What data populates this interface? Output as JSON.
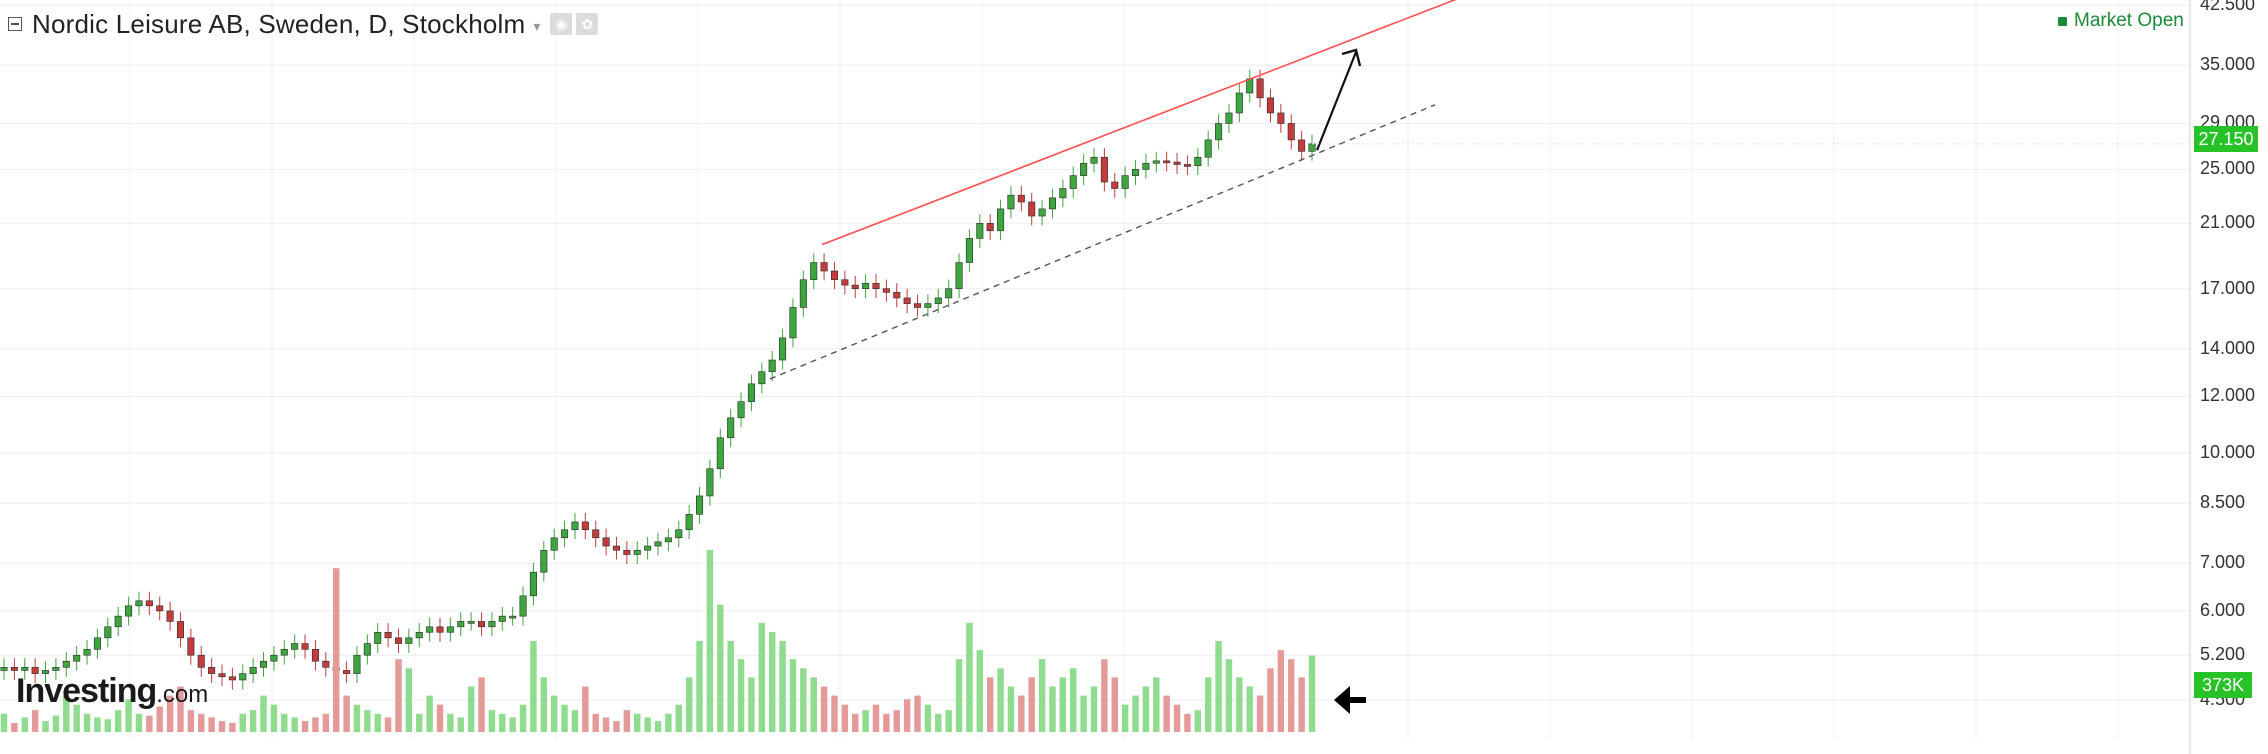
{
  "header": {
    "title": "Nordic Leisure AB, Sweden, D, Stockholm",
    "caret": "▾",
    "icons": [
      "camera-icon",
      "settings-icon"
    ]
  },
  "market_status": "Market Open",
  "logo": {
    "brand": "Investing",
    "suffix": ".com"
  },
  "price_label": "27.150",
  "volume_label": "373K",
  "y_ticks": [
    "42.500",
    "35.000",
    "29.000",
    "25.000",
    "21.000",
    "17.000",
    "14.000",
    "12.000",
    "10.000",
    "8.500",
    "7.000",
    "6.000",
    "5.200",
    "4.500"
  ],
  "colors": {
    "up": "#3ea63e",
    "down": "#c23c3c",
    "up_volume": "#8fdc8f",
    "down_volume": "#e59a9a",
    "resistance_line": "#ff4d4d",
    "support_line": "#555555",
    "price_tag": "#27c227",
    "market_open": "#1a8a3a"
  },
  "chart_data": {
    "type": "candlestick",
    "scale": "log",
    "ylim": [
      4.3,
      43.5
    ],
    "y_ticks": [
      42.5,
      35,
      29,
      25,
      21,
      17,
      14,
      12,
      10,
      8.5,
      7,
      6,
      5.2,
      4.5
    ],
    "last_price": 27.15,
    "last_volume": "373K",
    "close_path": [
      5.0,
      4.95,
      5.0,
      4.9,
      4.95,
      5.0,
      5.1,
      5.2,
      5.3,
      5.5,
      5.7,
      5.9,
      6.1,
      6.2,
      6.1,
      6.0,
      5.8,
      5.5,
      5.2,
      5.0,
      4.9,
      4.85,
      4.8,
      4.9,
      5.0,
      5.1,
      5.2,
      5.3,
      5.4,
      5.3,
      5.1,
      5.0,
      4.95,
      4.9,
      5.2,
      5.4,
      5.6,
      5.5,
      5.4,
      5.5,
      5.6,
      5.7,
      5.6,
      5.7,
      5.8,
      5.8,
      5.7,
      5.8,
      5.9,
      5.9,
      6.3,
      6.8,
      7.3,
      7.6,
      7.8,
      8.0,
      7.8,
      7.6,
      7.4,
      7.3,
      7.2,
      7.3,
      7.4,
      7.5,
      7.6,
      7.8,
      8.2,
      8.7,
      9.5,
      10.5,
      11.2,
      11.8,
      12.5,
      13.0,
      13.5,
      14.5,
      16.0,
      17.5,
      18.5,
      18.0,
      17.5,
      17.2,
      17.0,
      17.3,
      17.0,
      16.8,
      16.5,
      16.2,
      16.0,
      16.2,
      16.5,
      17.0,
      18.5,
      20.0,
      21.0,
      20.5,
      22.0,
      23.0,
      22.5,
      21.5,
      22.0,
      22.8,
      23.5,
      24.5,
      25.5,
      26.0,
      24.0,
      23.5,
      24.5,
      25.0,
      25.5,
      25.7,
      25.6,
      25.4,
      25.3,
      26.0,
      27.5,
      29.0,
      30.0,
      32.0,
      33.5,
      31.5,
      30.0,
      29.0,
      27.5,
      26.5,
      27.15
    ],
    "volume_rel": [
      0.1,
      0.05,
      0.08,
      0.12,
      0.06,
      0.09,
      0.2,
      0.15,
      0.1,
      0.08,
      0.07,
      0.12,
      0.18,
      0.1,
      0.09,
      0.14,
      0.2,
      0.25,
      0.12,
      0.1,
      0.08,
      0.06,
      0.05,
      0.1,
      0.12,
      0.2,
      0.15,
      0.1,
      0.08,
      0.06,
      0.08,
      0.1,
      0.9,
      0.2,
      0.15,
      0.12,
      0.1,
      0.08,
      0.4,
      0.35,
      0.1,
      0.2,
      0.15,
      0.1,
      0.08,
      0.25,
      0.3,
      0.12,
      0.1,
      0.08,
      0.15,
      0.5,
      0.3,
      0.2,
      0.15,
      0.12,
      0.25,
      0.1,
      0.08,
      0.06,
      0.12,
      0.1,
      0.08,
      0.06,
      0.1,
      0.15,
      0.3,
      0.5,
      1.0,
      0.7,
      0.5,
      0.4,
      0.3,
      0.6,
      0.55,
      0.5,
      0.4,
      0.35,
      0.3,
      0.25,
      0.2,
      0.15,
      0.1,
      0.12,
      0.15,
      0.1,
      0.12,
      0.18,
      0.2,
      0.15,
      0.1,
      0.12,
      0.4,
      0.6,
      0.45,
      0.3,
      0.35,
      0.25,
      0.2,
      0.3,
      0.4,
      0.25,
      0.3,
      0.35,
      0.2,
      0.25,
      0.4,
      0.3,
      0.15,
      0.2,
      0.25,
      0.3,
      0.2,
      0.15,
      0.1,
      0.12,
      0.3,
      0.5,
      0.4,
      0.3,
      0.25,
      0.2,
      0.35,
      0.45,
      0.4,
      0.3,
      0.42
    ]
  }
}
